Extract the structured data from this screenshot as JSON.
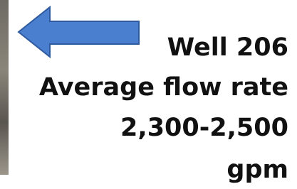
{
  "callout": {
    "lines": [
      "Well 206",
      "Average flow rate",
      "2,300-2,500",
      "gpm"
    ]
  }
}
